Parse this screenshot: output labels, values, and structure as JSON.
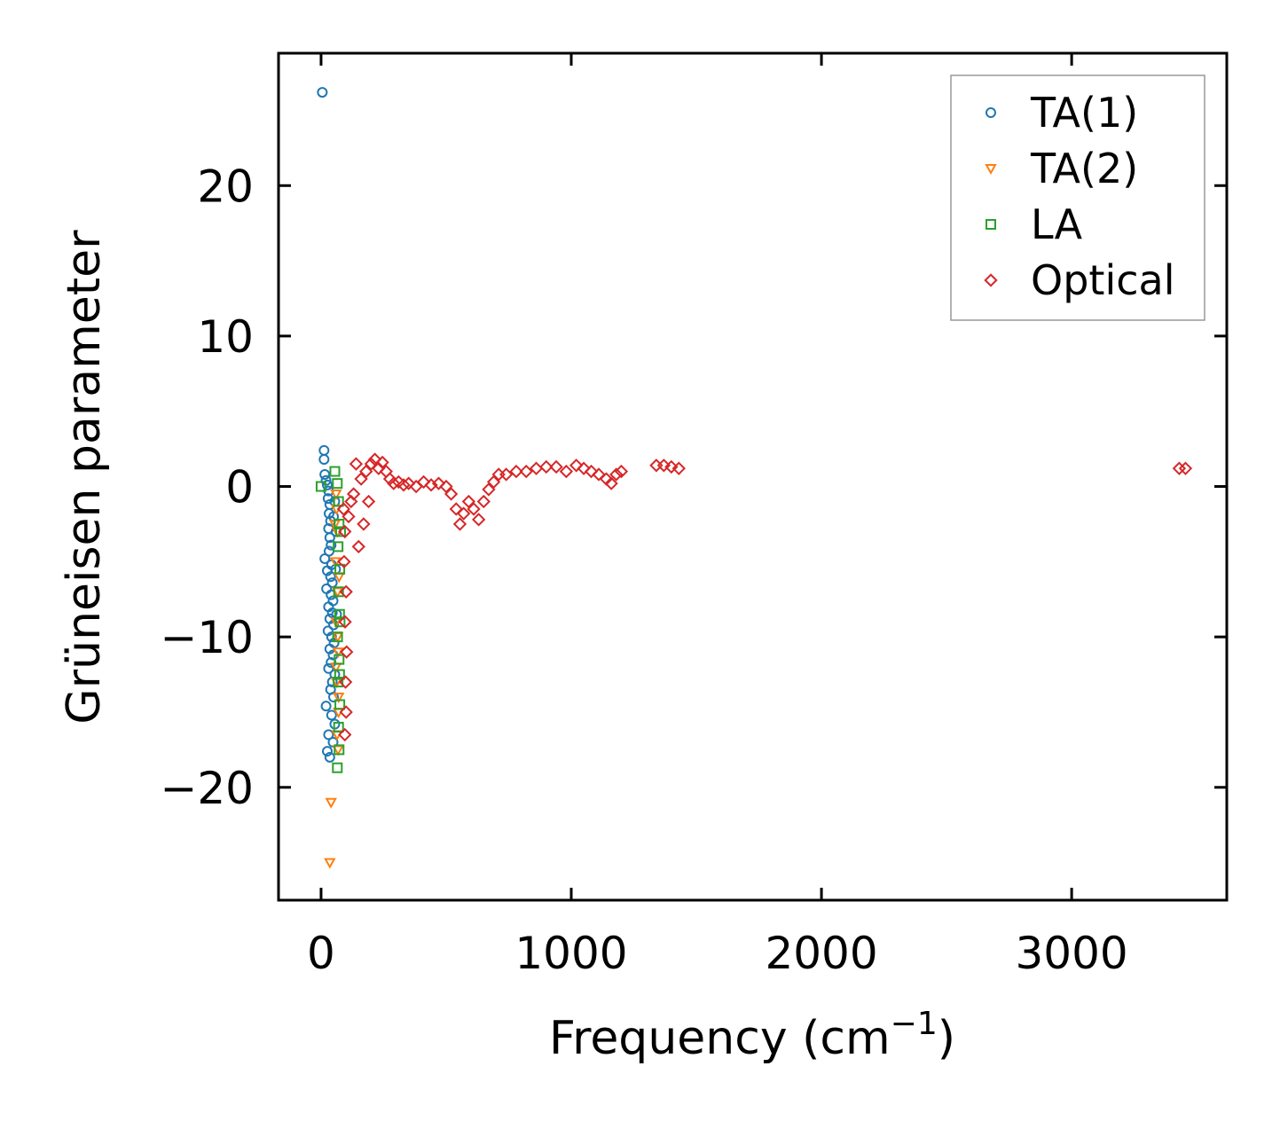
{
  "chart_data": {
    "type": "scatter",
    "title": "",
    "xlabel": "Frequency (cm",
    "xlabel_sup": "−1",
    "xlabel_close": ")",
    "ylabel": "Grüneisen parameter",
    "xlim": [
      -170,
      3620
    ],
    "ylim": [
      -27.5,
      28.8
    ],
    "xticks": [
      0,
      1000,
      2000,
      3000
    ],
    "xtick_labels": [
      "0",
      "1000",
      "2000",
      "3000"
    ],
    "yticks": [
      -20,
      -10,
      0,
      10,
      20
    ],
    "ytick_labels": [
      "−20",
      "−10",
      "0",
      "10",
      "20"
    ],
    "grid": false,
    "legend_position": "top-right",
    "series": [
      {
        "name": "TA(1)",
        "marker": "circle",
        "color": "#1f77b4",
        "points": [
          [
            5,
            26.2
          ],
          [
            12,
            2.4
          ],
          [
            12,
            1.8
          ],
          [
            15,
            0.8
          ],
          [
            20,
            0.4
          ],
          [
            25,
            0.1
          ],
          [
            30,
            -0.3
          ],
          [
            28,
            -0.8
          ],
          [
            35,
            -1.2
          ],
          [
            32,
            -1.8
          ],
          [
            38,
            -2.3
          ],
          [
            30,
            -2.8
          ],
          [
            35,
            -3.4
          ],
          [
            40,
            -3.9
          ],
          [
            32,
            -4.3
          ],
          [
            15,
            -4.8
          ],
          [
            42,
            -5.2
          ],
          [
            25,
            -5.6
          ],
          [
            38,
            -6.0
          ],
          [
            45,
            -6.4
          ],
          [
            22,
            -6.8
          ],
          [
            40,
            -7.2
          ],
          [
            48,
            -7.6
          ],
          [
            30,
            -8.0
          ],
          [
            45,
            -8.4
          ],
          [
            35,
            -8.8
          ],
          [
            50,
            -9.2
          ],
          [
            28,
            -9.6
          ],
          [
            42,
            -10.0
          ],
          [
            52,
            -10.4
          ],
          [
            35,
            -10.8
          ],
          [
            48,
            -11.2
          ],
          [
            40,
            -11.7
          ],
          [
            30,
            -12.1
          ],
          [
            55,
            -12.5
          ],
          [
            45,
            -13.0
          ],
          [
            38,
            -13.5
          ],
          [
            50,
            -14.0
          ],
          [
            20,
            -14.6
          ],
          [
            42,
            -15.2
          ],
          [
            55,
            -15.8
          ],
          [
            30,
            -16.5
          ],
          [
            48,
            -17.0
          ],
          [
            25,
            -17.6
          ],
          [
            35,
            -18.0
          ],
          [
            60,
            -3.0
          ],
          [
            58,
            -5.5
          ],
          [
            62,
            -8.5
          ],
          [
            55,
            -1.0
          ],
          [
            50,
            -2.0
          ]
        ]
      },
      {
        "name": "TA(2)",
        "marker": "triangle-down",
        "color": "#ff7f0e",
        "points": [
          [
            40,
            -21.0
          ],
          [
            35,
            -25.0
          ],
          [
            60,
            -0.5
          ],
          [
            62,
            -1.5
          ],
          [
            65,
            -3.0
          ],
          [
            58,
            -5.0
          ],
          [
            66,
            -7.0
          ],
          [
            60,
            -9.0
          ],
          [
            68,
            -11.0
          ],
          [
            62,
            -13.0
          ],
          [
            70,
            -15.0
          ],
          [
            64,
            -16.5
          ],
          [
            68,
            -17.5
          ],
          [
            55,
            -2.5
          ],
          [
            72,
            -6.0
          ],
          [
            66,
            -10.0
          ],
          [
            60,
            -12.0
          ],
          [
            70,
            -14.0
          ]
        ]
      },
      {
        "name": "LA",
        "marker": "square",
        "color": "#2ca02c",
        "points": [
          [
            0,
            0.0
          ],
          [
            55,
            1.0
          ],
          [
            65,
            0.2
          ],
          [
            70,
            -1.0
          ],
          [
            72,
            -2.5
          ],
          [
            68,
            -4.0
          ],
          [
            75,
            -5.5
          ],
          [
            70,
            -7.0
          ],
          [
            74,
            -8.5
          ],
          [
            66,
            -10.0
          ],
          [
            72,
            -11.5
          ],
          [
            68,
            -13.0
          ],
          [
            75,
            -14.5
          ],
          [
            70,
            -16.0
          ],
          [
            72,
            -17.5
          ],
          [
            65,
            -18.7
          ],
          [
            78,
            -3.0
          ],
          [
            76,
            -9.0
          ],
          [
            74,
            -12.5
          ]
        ]
      },
      {
        "name": "Optical",
        "marker": "diamond",
        "color": "#d62728",
        "points": [
          [
            90,
            -1.5
          ],
          [
            95,
            -3.0
          ],
          [
            92,
            -5.0
          ],
          [
            100,
            -7.0
          ],
          [
            96,
            -9.0
          ],
          [
            102,
            -11.0
          ],
          [
            98,
            -13.0
          ],
          [
            100,
            -15.0
          ],
          [
            95,
            -16.5
          ],
          [
            110,
            -2.0
          ],
          [
            120,
            -1.0
          ],
          [
            130,
            -0.5
          ],
          [
            140,
            1.5
          ],
          [
            150,
            -4.0
          ],
          [
            160,
            0.5
          ],
          [
            170,
            -2.5
          ],
          [
            180,
            1.0
          ],
          [
            190,
            -1.0
          ],
          [
            200,
            1.5
          ],
          [
            215,
            1.8
          ],
          [
            230,
            1.2
          ],
          [
            245,
            1.6
          ],
          [
            260,
            1.0
          ],
          [
            275,
            0.5
          ],
          [
            290,
            0.2
          ],
          [
            310,
            0.3
          ],
          [
            330,
            0.1
          ],
          [
            350,
            0.2
          ],
          [
            380,
            0.0
          ],
          [
            410,
            0.3
          ],
          [
            440,
            0.1
          ],
          [
            470,
            0.2
          ],
          [
            500,
            0.0
          ],
          [
            520,
            -0.5
          ],
          [
            540,
            -1.5
          ],
          [
            555,
            -2.5
          ],
          [
            570,
            -1.8
          ],
          [
            590,
            -1.0
          ],
          [
            610,
            -1.5
          ],
          [
            630,
            -2.2
          ],
          [
            650,
            -1.0
          ],
          [
            670,
            -0.2
          ],
          [
            690,
            0.3
          ],
          [
            710,
            0.8
          ],
          [
            740,
            0.8
          ],
          [
            780,
            1.0
          ],
          [
            820,
            1.0
          ],
          [
            860,
            1.2
          ],
          [
            900,
            1.3
          ],
          [
            940,
            1.3
          ],
          [
            980,
            1.0
          ],
          [
            1020,
            1.4
          ],
          [
            1050,
            1.2
          ],
          [
            1080,
            1.0
          ],
          [
            1110,
            0.8
          ],
          [
            1140,
            0.5
          ],
          [
            1160,
            0.2
          ],
          [
            1180,
            0.8
          ],
          [
            1200,
            1.0
          ],
          [
            1340,
            1.4
          ],
          [
            1370,
            1.4
          ],
          [
            1400,
            1.3
          ],
          [
            1430,
            1.2
          ],
          [
            3430,
            1.2
          ],
          [
            3455,
            1.2
          ]
        ]
      }
    ]
  }
}
